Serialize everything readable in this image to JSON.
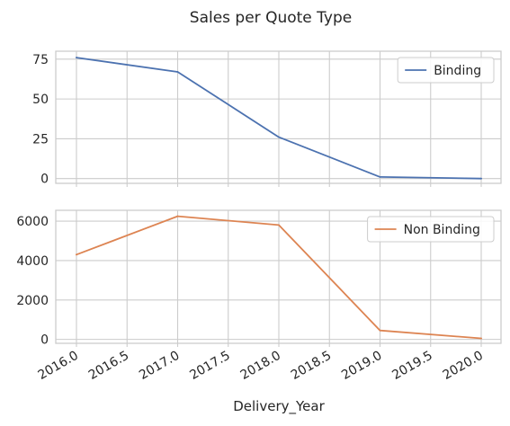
{
  "chart_data": {
    "type": "line",
    "title": "Sales per Quote Type",
    "xlabel": "Delivery_Year",
    "x": [
      2016,
      2017,
      2018,
      2019,
      2020
    ],
    "xlim": [
      2016.0,
      2020.0
    ],
    "xticks": [
      2016.0,
      2016.5,
      2017.0,
      2017.5,
      2018.0,
      2018.5,
      2019.0,
      2019.5,
      2020.0
    ],
    "xtick_labels": [
      "2016.0",
      "2016.5",
      "2017.0",
      "2017.5",
      "2018.0",
      "2018.5",
      "2019.0",
      "2019.5",
      "2020.0"
    ],
    "grid": true,
    "legend_position": "top-right",
    "subplots": [
      {
        "series": [
          {
            "name": "Binding",
            "color": "#4c72b0",
            "values": [
              76,
              67,
              26,
              1,
              0
            ]
          }
        ],
        "ylim": [
          -3,
          80
        ],
        "yticks": [
          0,
          25,
          50,
          75
        ],
        "ytick_labels": [
          "0",
          "25",
          "50",
          "75"
        ]
      },
      {
        "series": [
          {
            "name": "Non Binding",
            "color": "#dd8452",
            "values": [
              4300,
              6250,
              5800,
              450,
              50
            ]
          }
        ],
        "ylim": [
          -200,
          6550
        ],
        "yticks": [
          0,
          2000,
          4000,
          6000
        ],
        "ytick_labels": [
          "0",
          "2000",
          "4000",
          "6000"
        ]
      }
    ]
  }
}
